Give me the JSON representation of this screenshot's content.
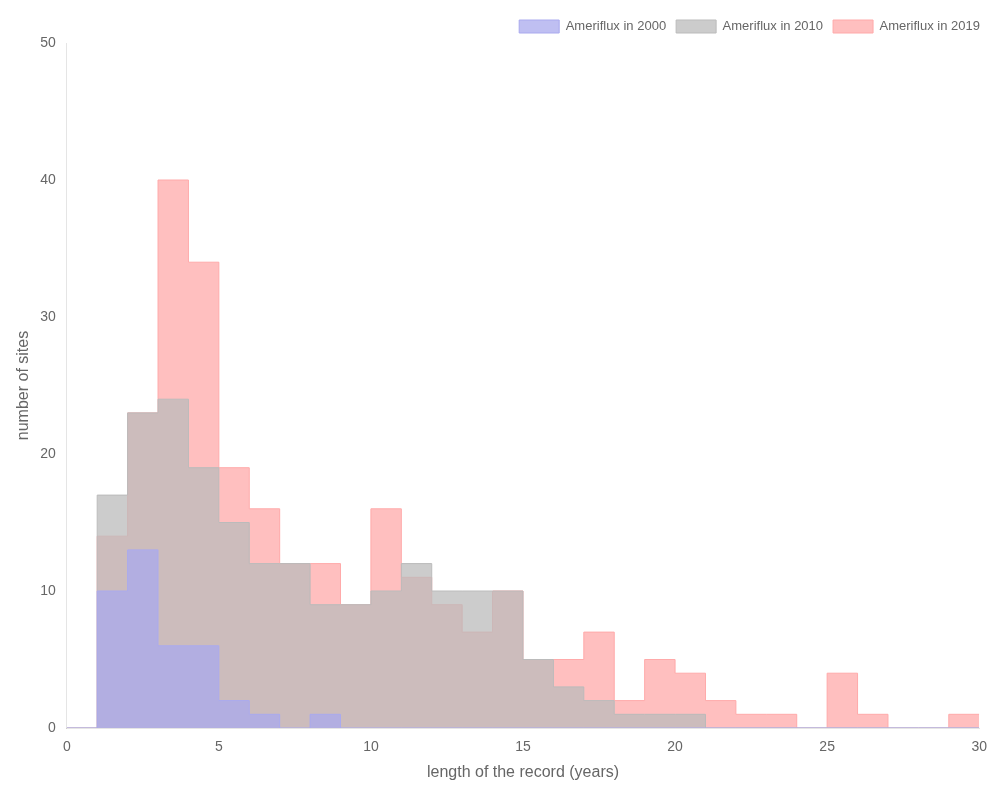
{
  "chart_data": {
    "type": "histogram",
    "xlabel": "length of the record (years)",
    "ylabel": "number of sites",
    "bins": [
      0,
      1,
      2,
      3,
      4,
      5,
      6,
      7,
      8,
      9,
      10,
      11,
      12,
      13,
      14,
      15,
      16,
      17,
      18,
      19,
      20,
      21,
      22,
      23,
      24,
      25,
      26,
      27,
      28,
      29,
      30
    ],
    "series": [
      {
        "name": "Ameriflux in 2000",
        "color": "#aaaaee",
        "values": [
          0,
          10,
          13,
          6,
          6,
          2,
          1,
          0,
          1,
          0,
          0,
          0,
          0,
          0,
          0,
          0,
          0,
          0,
          0,
          0,
          0,
          0,
          0,
          0,
          0,
          0,
          0,
          0,
          0,
          0
        ]
      },
      {
        "name": "Ameriflux in 2010",
        "color": "#bbbbbb",
        "values": [
          0,
          17,
          23,
          24,
          19,
          15,
          12,
          12,
          9,
          9,
          10,
          12,
          10,
          10,
          10,
          5,
          3,
          2,
          1,
          1,
          1,
          0,
          0,
          0,
          0,
          0,
          0,
          0,
          0,
          0
        ]
      },
      {
        "name": "Ameriflux in 2019",
        "color": "#ffaaaa",
        "values": [
          0,
          14,
          23,
          40,
          34,
          19,
          16,
          12,
          12,
          9,
          16,
          11,
          9,
          7,
          10,
          5,
          5,
          7,
          2,
          5,
          4,
          2,
          1,
          1,
          0,
          4,
          1,
          0,
          0,
          1
        ]
      }
    ],
    "xlim": [
      0,
      30
    ],
    "ylim": [
      0,
      50
    ],
    "xticks": [
      0,
      5,
      10,
      15,
      20,
      25,
      30
    ],
    "yticks": [
      0,
      10,
      20,
      30,
      40,
      50
    ],
    "grid": false,
    "legend": "upper right"
  }
}
